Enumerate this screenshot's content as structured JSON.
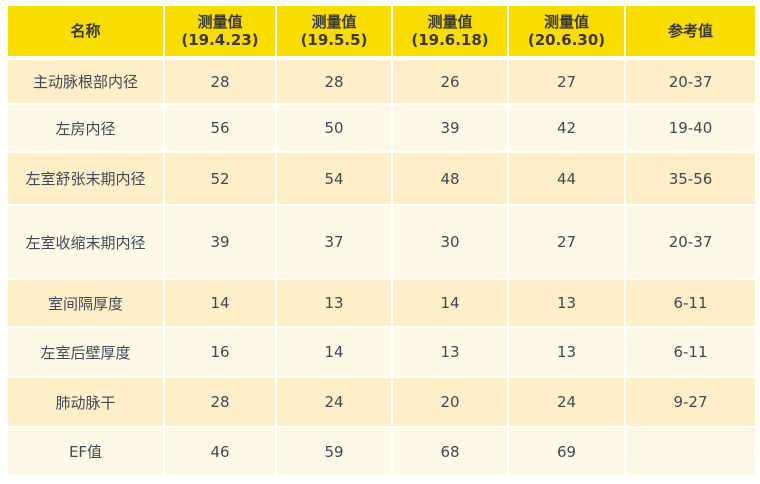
{
  "header": {
    "name": "名称",
    "columns": [
      {
        "line1": "测量值",
        "line2": "(19.4.23)"
      },
      {
        "line1": "测量值",
        "line2": "(19.5.5)"
      },
      {
        "line1": "测量值",
        "line2": "(19.6.18)"
      },
      {
        "line1": "测量值",
        "line2": "(20.6.30)"
      }
    ],
    "reference": "参考值"
  },
  "rows": [
    {
      "name": "主动脉根部内径",
      "values": [
        "28",
        "28",
        "26",
        "27"
      ],
      "reference": "20-37"
    },
    {
      "name": "左房内径",
      "values": [
        "56",
        "50",
        "39",
        "42"
      ],
      "reference": "19-40"
    },
    {
      "name": "左室舒张末期内径",
      "values": [
        "52",
        "54",
        "48",
        "44"
      ],
      "reference": "35-56"
    },
    {
      "name": "左室收缩末期内径",
      "values": [
        "39",
        "37",
        "30",
        "27"
      ],
      "reference": "20-37"
    },
    {
      "name": "室间隔厚度",
      "values": [
        "14",
        "13",
        "14",
        "13"
      ],
      "reference": "6-11"
    },
    {
      "name": "左室后壁厚度",
      "values": [
        "16",
        "14",
        "13",
        "13"
      ],
      "reference": "6-11"
    },
    {
      "name": "肺动脉干",
      "values": [
        "28",
        "24",
        "20",
        "24"
      ],
      "reference": "9-27"
    },
    {
      "name": "EF值",
      "values": [
        "46",
        "59",
        "68",
        "69"
      ],
      "reference": ""
    }
  ],
  "colors": {
    "header": "#f9dd00",
    "row_odd": "#feefc9",
    "row_even": "#fef8e7",
    "text": "#3f4a58"
  }
}
